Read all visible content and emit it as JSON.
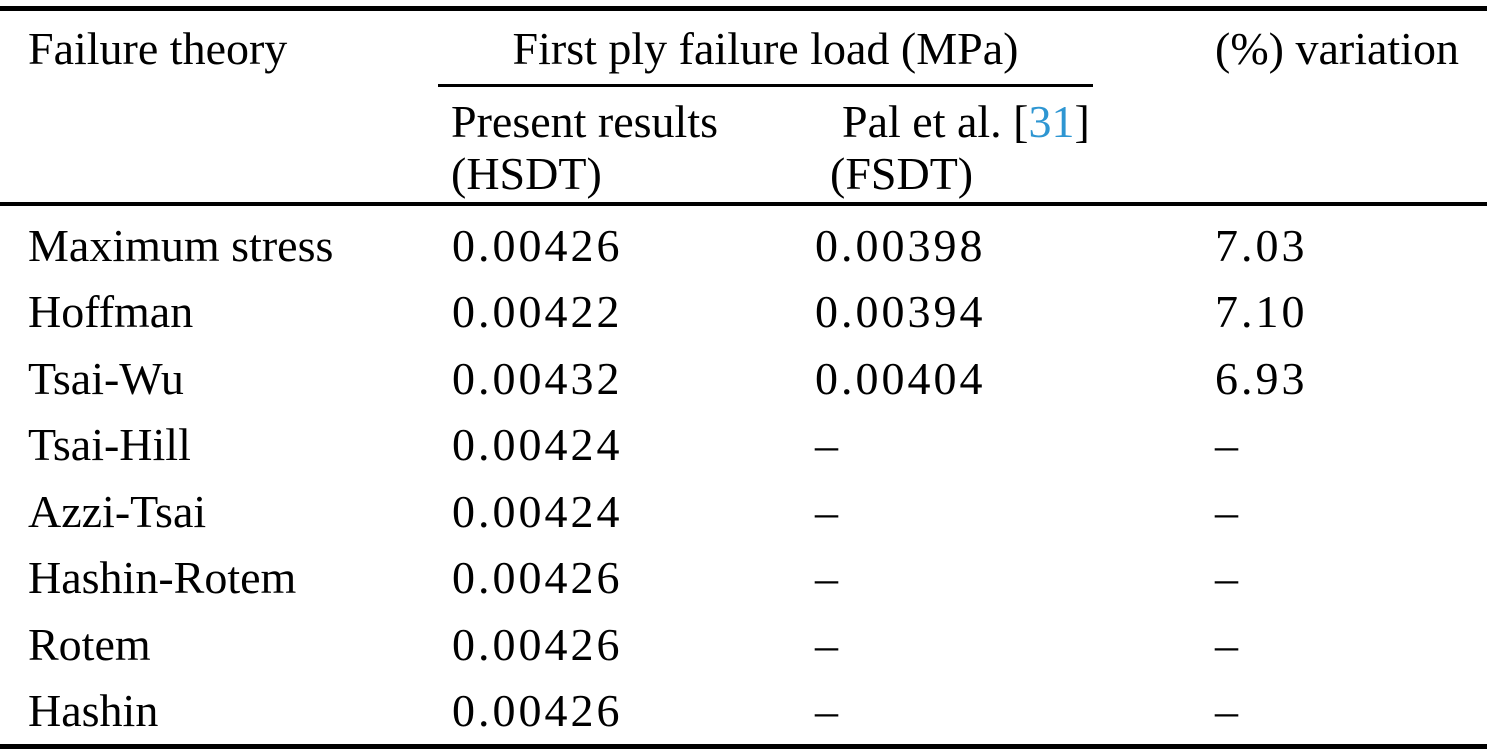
{
  "table": {
    "header": {
      "col1": "Failure theory",
      "group": "First ply failure load (MPa)",
      "sub1_line1": "Present results",
      "sub1_line2": "(HSDT)",
      "sub2_prefix": "Pal et al. [",
      "sub2_citation": "31",
      "sub2_suffix": "]",
      "sub2_line2": "(FSDT)",
      "col4": "(%) variation"
    },
    "rows": [
      {
        "theory": "Maximum stress",
        "present": "0.00426",
        "reference": "0.00398",
        "variation": "7.03"
      },
      {
        "theory": "Hoffman",
        "present": "0.00422",
        "reference": "0.00394",
        "variation": "7.10"
      },
      {
        "theory": "Tsai-Wu",
        "present": "0.00432",
        "reference": "0.00404",
        "variation": "6.93"
      },
      {
        "theory": "Tsai-Hill",
        "present": "0.00424",
        "reference": "–",
        "variation": "–"
      },
      {
        "theory": "Azzi-Tsai",
        "present": "0.00424",
        "reference": "–",
        "variation": "–"
      },
      {
        "theory": "Hashin-Rotem",
        "present": "0.00426",
        "reference": "–",
        "variation": "–"
      },
      {
        "theory": "Rotem",
        "present": "0.00426",
        "reference": "–",
        "variation": "–"
      },
      {
        "theory": "Hashin",
        "present": "0.00426",
        "reference": "–",
        "variation": "–"
      }
    ]
  },
  "colors": {
    "background": "#ffffff",
    "text": "#000000",
    "rule": "#000000",
    "citation_link": "#2e96d2"
  }
}
